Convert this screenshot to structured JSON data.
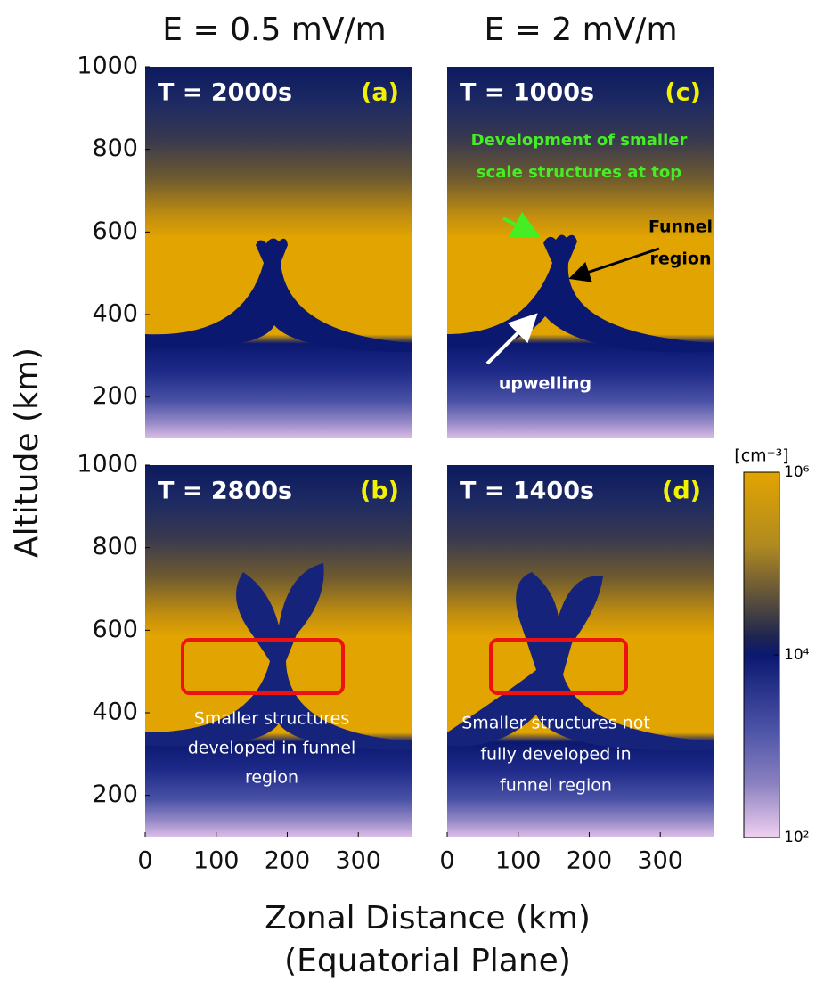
{
  "figure": {
    "column_titles": [
      "E = 0.5 mV/m",
      "E = 2 mV/m"
    ],
    "y_label": "Altitude (km)",
    "x_label": [
      "Zonal Distance (km)",
      "(Equatorial Plane)"
    ],
    "colorbar": {
      "label": "[cm⁻³]",
      "scale": "log",
      "lim": [
        100,
        1000000
      ],
      "ticks": [
        {
          "value": 100,
          "label": "10²"
        },
        {
          "value": 10000,
          "label": "10⁴"
        },
        {
          "value": 1000000,
          "label": "10⁶"
        }
      ]
    }
  },
  "chart_data": [
    {
      "type": "contour",
      "title": "T = 2000s",
      "panel_label": "(a)",
      "xlim": [
        0,
        375
      ],
      "ylim": [
        100,
        1000
      ],
      "yticks": [
        200,
        400,
        600,
        800,
        1000
      ],
      "annotations": []
    },
    {
      "type": "contour",
      "title": "T = 2800s",
      "panel_label": "(b)",
      "xlim": [
        0,
        375
      ],
      "ylim": [
        100,
        1000
      ],
      "yticks": [
        200,
        400,
        600,
        800,
        1000
      ],
      "xticks": [
        0,
        100,
        200,
        300
      ],
      "annotations": [
        "Smaller structures",
        "developed in funnel",
        "region"
      ]
    },
    {
      "type": "contour",
      "title": "T = 1000s",
      "panel_label": "(c)",
      "xlim": [
        0,
        375
      ],
      "ylim": [
        100,
        1000
      ],
      "annotations": [
        "Development of smaller",
        "scale structures at top",
        "Funnel",
        "region",
        "upwelling"
      ]
    },
    {
      "type": "contour",
      "title": "T = 1400s",
      "panel_label": "(d)",
      "xlim": [
        0,
        375
      ],
      "ylim": [
        100,
        1000
      ],
      "xticks": [
        0,
        100,
        200,
        300
      ],
      "annotations": [
        "Smaller structures not",
        "fully developed in",
        "funnel region"
      ]
    }
  ]
}
